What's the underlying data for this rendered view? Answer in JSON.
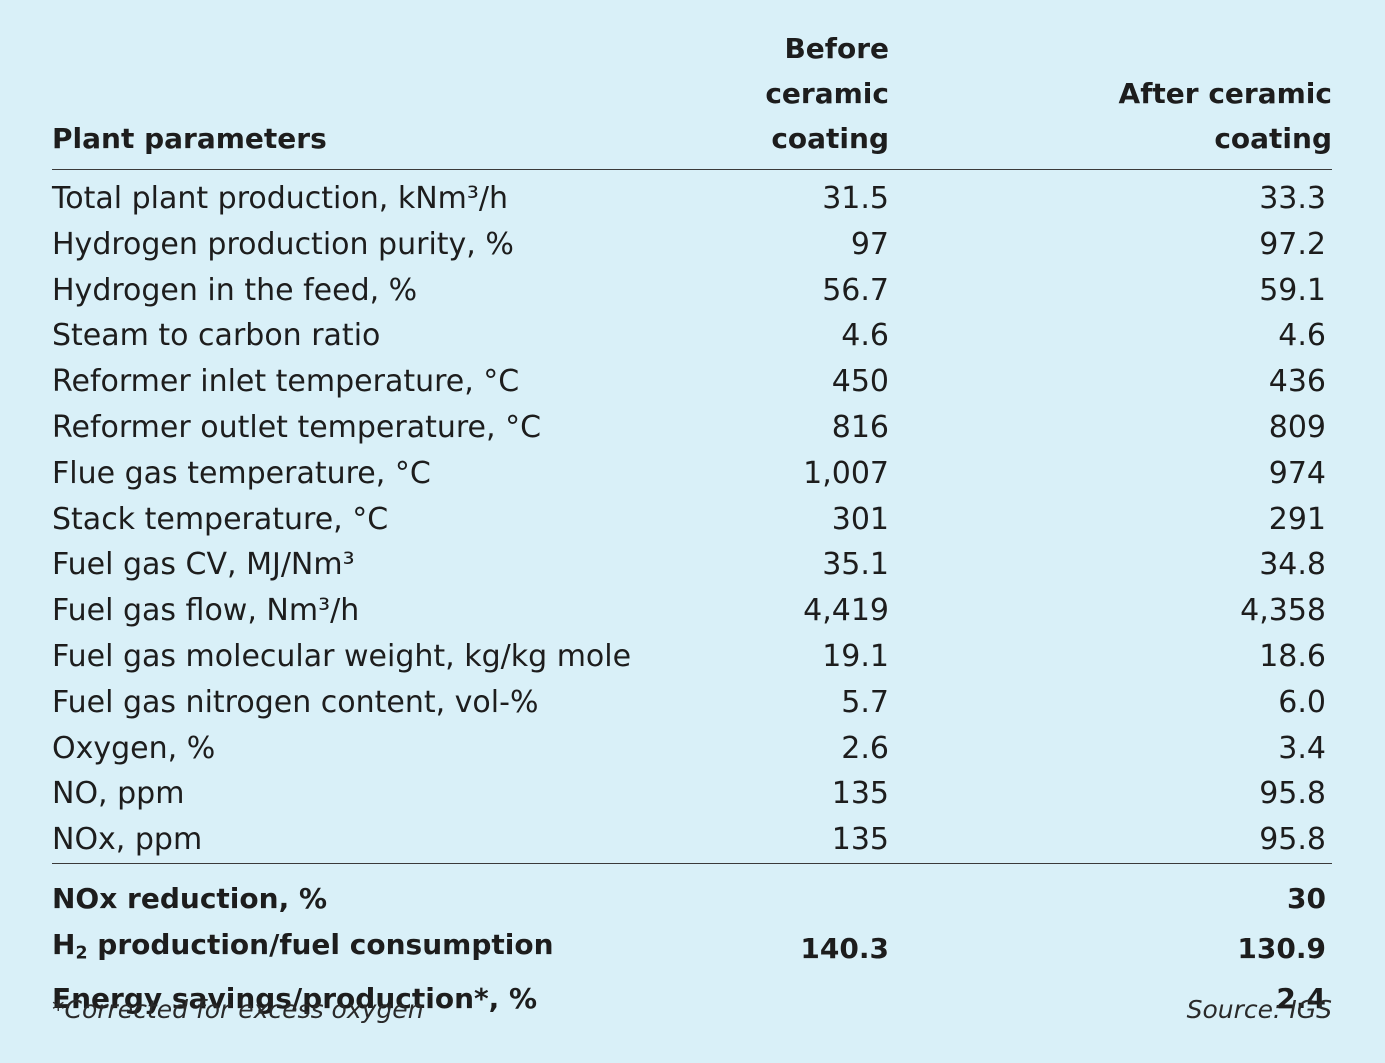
{
  "table": {
    "headers": {
      "parameter": "Plant parameters",
      "before": [
        "Before ceramic",
        "coating"
      ],
      "after": [
        "After ceramic",
        "coating"
      ]
    },
    "rows": [
      {
        "label": "Total plant production, kNm³/h",
        "before": "31.5",
        "after": "33.3"
      },
      {
        "label": "Hydrogen production purity, %",
        "before": "97",
        "after": "97.2"
      },
      {
        "label": "Hydrogen in the feed, %",
        "before": "56.7",
        "after": "59.1"
      },
      {
        "label": "Steam to carbon ratio",
        "before": "4.6",
        "after": "4.6"
      },
      {
        "label": "Reformer inlet temperature, °C",
        "before": "450",
        "after": "436"
      },
      {
        "label": "Reformer outlet temperature, °C",
        "before": "816",
        "after": "809"
      },
      {
        "label": "Flue gas temperature, °C",
        "before": "1,007",
        "after": "974"
      },
      {
        "label": "Stack temperature, °C",
        "before": "301",
        "after": "291"
      },
      {
        "label": "Fuel gas CV, MJ/Nm³",
        "before": "35.1",
        "after": "34.8"
      },
      {
        "label": "Fuel gas flow, Nm³/h",
        "before": "4,419",
        "after": "4,358"
      },
      {
        "label": "Fuel gas molecular weight, kg/kg mole",
        "before": "19.1",
        "after": "18.6"
      },
      {
        "label": "Fuel gas nitrogen content, vol-%",
        "before": "5.7",
        "after": "6.0"
      },
      {
        "label": "Oxygen, %",
        "before": "2.6",
        "after": "3.4"
      },
      {
        "label": "NO, ppm",
        "before": "135",
        "after": "95.8"
      },
      {
        "label": "NOx, ppm",
        "before": "135",
        "after": "95.8"
      }
    ],
    "summary": [
      {
        "label": "NOx reduction, %",
        "before": "",
        "after": "30"
      },
      {
        "label_prefix": "H",
        "label_sub": "2",
        "label_suffix": " production/fuel consumption",
        "before": "140.3",
        "after": "130.9"
      },
      {
        "label": "Energy savings/production*, %",
        "before": "",
        "after": "2.4"
      }
    ]
  },
  "footnote": "*Corrected for excess oxygen",
  "source": "Source: IGS",
  "colors": {
    "background": "#d9f0f8",
    "text": "#1d1d1d",
    "rule": "#3a3a3a"
  }
}
